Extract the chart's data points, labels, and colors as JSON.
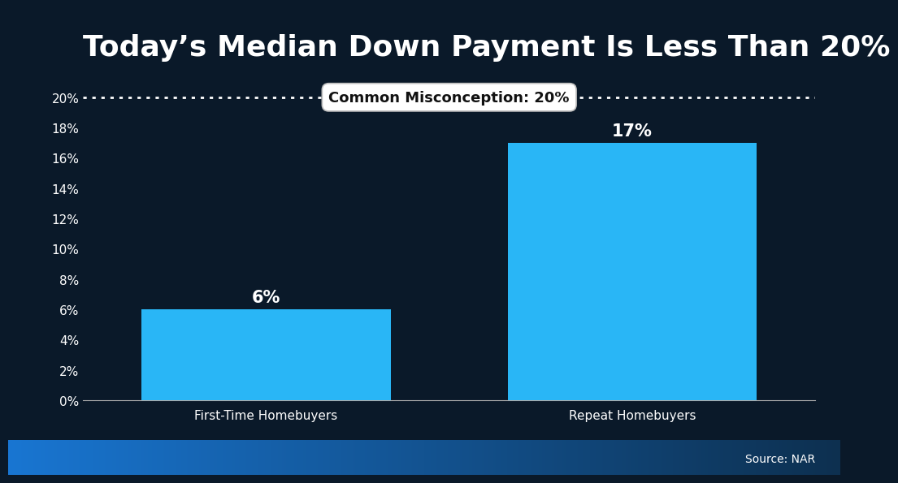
{
  "title": "Today’s Median Down Payment Is Less Than 20%",
  "categories": [
    "First-Time Homebuyers",
    "Repeat Homebuyers"
  ],
  "values": [
    6,
    17
  ],
  "bar_color": "#29b6f6",
  "bar_labels": [
    "6%",
    "17%"
  ],
  "misconception_label": "Common Misconception: 20%",
  "misconception_value": 20,
  "ylim": [
    0,
    21
  ],
  "yticks": [
    0,
    2,
    4,
    6,
    8,
    10,
    12,
    14,
    16,
    18,
    20
  ],
  "ytick_labels": [
    "0%",
    "2%",
    "4%",
    "6%",
    "8%",
    "10%",
    "12%",
    "14%",
    "16%",
    "18%",
    "20%"
  ],
  "background_color": "#0a1929",
  "plot_bg_color": "#0a1929",
  "text_color": "#ffffff",
  "source_text": "Source: NAR",
  "title_fontsize": 26,
  "bar_label_fontsize": 15,
  "axis_label_fontsize": 11,
  "misconception_fontsize": 13,
  "source_fontsize": 10,
  "bottom_bar_color_left": "#1976d2",
  "bottom_bar_color_right": "#0d2a3d"
}
